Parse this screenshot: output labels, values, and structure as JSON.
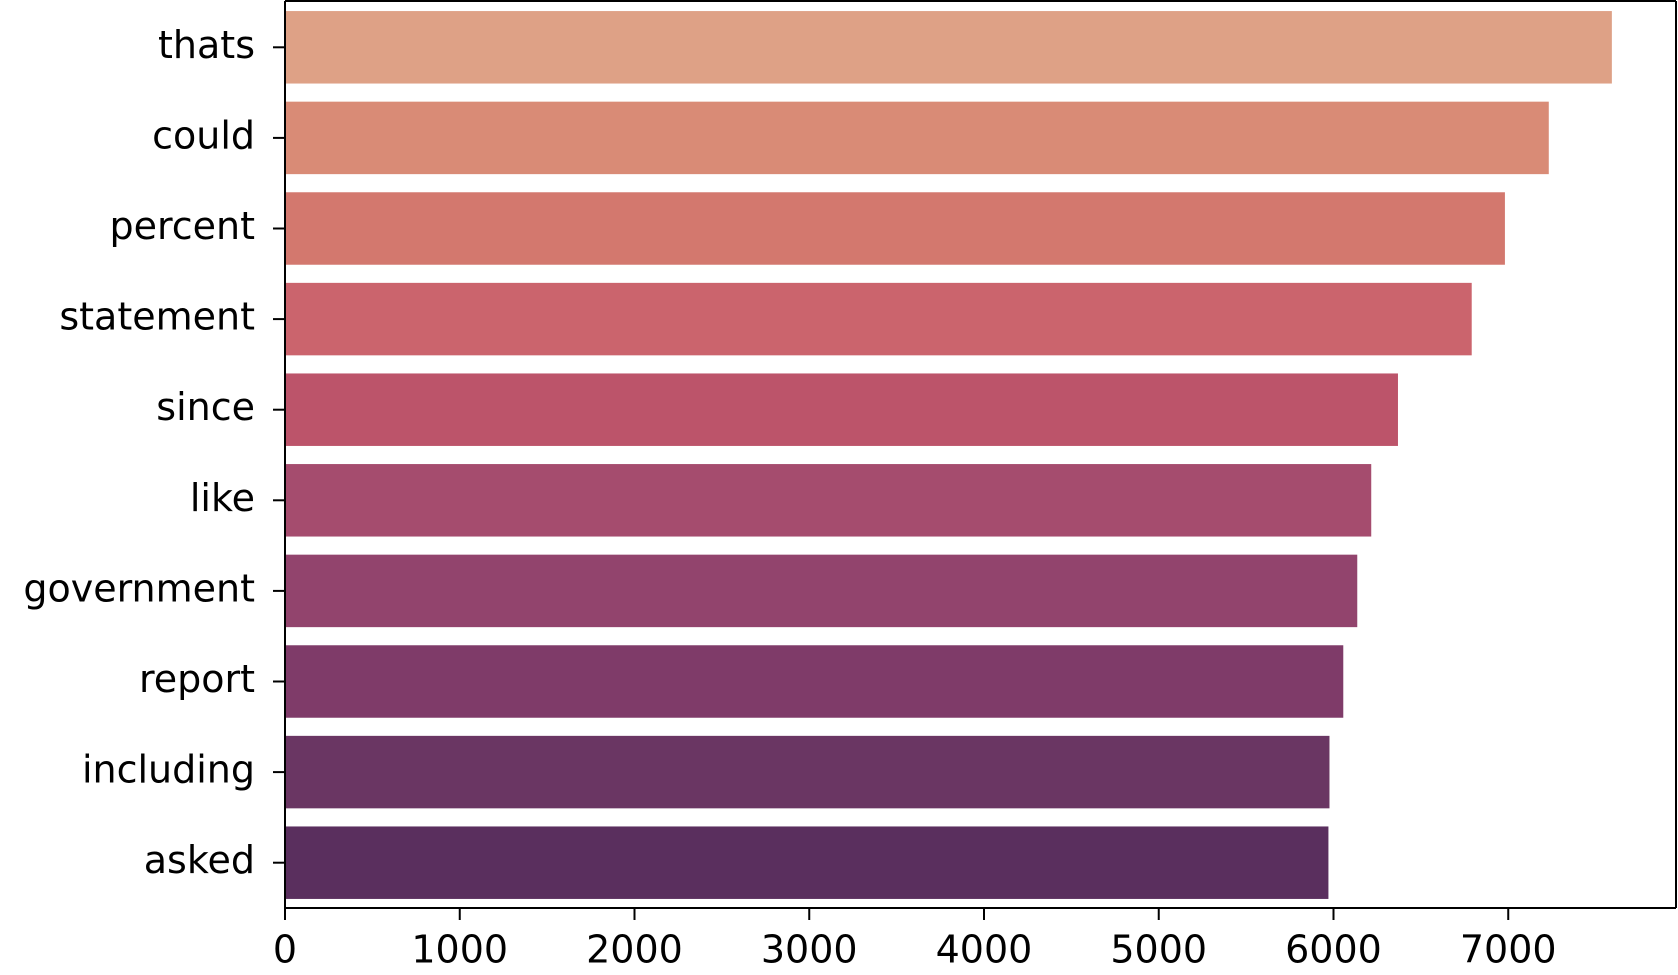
{
  "chart_data": {
    "type": "barh",
    "categories": [
      "thats",
      "could",
      "percent",
      "statement",
      "since",
      "like",
      "government",
      "report",
      "including",
      "asked"
    ],
    "values": [
      7593,
      7232,
      6981,
      6791,
      6369,
      6216,
      6136,
      6056,
      5977,
      5971
    ],
    "colors": [
      "#dea186",
      "#d98b76",
      "#d3786e",
      "#cb646d",
      "#bc546a",
      "#a54c6e",
      "#92446d",
      "#7f3b69",
      "#6a3663",
      "#5a2f5e"
    ],
    "xlim": [
      0,
      7960
    ],
    "xticks": [
      0,
      1000,
      2000,
      3000,
      4000,
      5000,
      6000,
      7000
    ],
    "grid": false
  }
}
